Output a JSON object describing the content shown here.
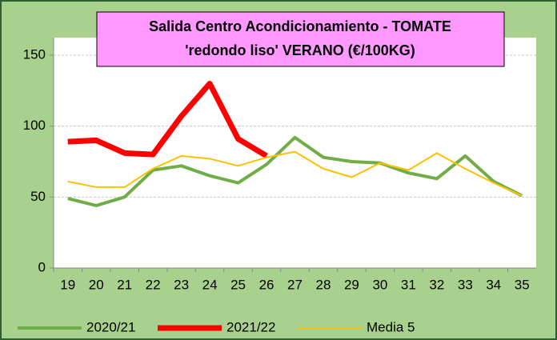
{
  "chart_data": {
    "type": "line",
    "title": [
      "Salida Centro Acondicionamiento - TOMATE",
      "'redondo liso' VERANO (€/100KG)"
    ],
    "categories": [
      "19",
      "20",
      "21",
      "22",
      "23",
      "24",
      "25",
      "26",
      "27",
      "28",
      "29",
      "30",
      "31",
      "32",
      "33",
      "34",
      "35"
    ],
    "series": [
      {
        "name": "2020/21",
        "color": "#70ad47",
        "width": 4,
        "values": [
          49,
          44,
          50,
          69,
          72,
          65,
          60,
          73,
          92,
          78,
          75,
          74,
          67,
          63,
          79,
          61,
          51
        ]
      },
      {
        "name": "2021/22",
        "color": "#ff0000",
        "width": 7,
        "values": [
          89,
          90,
          81,
          80,
          107,
          130,
          91,
          79,
          null,
          null,
          null,
          null,
          null,
          null,
          null,
          null,
          null
        ]
      },
      {
        "name": "Media 5",
        "color": "#ffc000",
        "width": 2,
        "values": [
          61,
          57,
          57,
          70,
          79,
          77,
          72,
          78,
          82,
          70,
          64,
          74,
          69,
          81,
          70,
          60,
          51
        ]
      }
    ],
    "ylim": [
      0,
      150
    ],
    "yticks": [
      0,
      50,
      100,
      150
    ],
    "grid": true
  }
}
